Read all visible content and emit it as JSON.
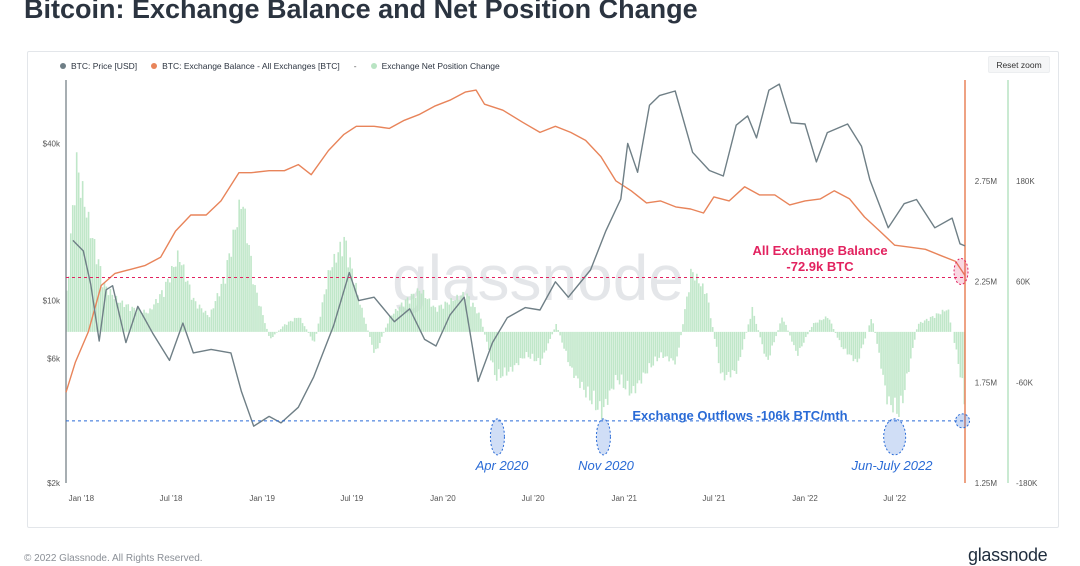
{
  "page": {
    "title": "Bitcoin: Exchange Balance and Net Position Change",
    "copyright": "© 2022 Glassnode. All Rights Reserved.",
    "brand": "glassnode",
    "watermark": "glassnode",
    "reset_zoom_label": "Reset zoom"
  },
  "legend": [
    {
      "label": "BTC: Price [USD]",
      "color": "#6f7f86"
    },
    {
      "label": "BTC: Exchange Balance - All Exchanges [BTC]",
      "color": "#e8845a"
    },
    {
      "label": "Exchange Net Position Change",
      "color": "#b9e4c3"
    }
  ],
  "legend_separator": "-",
  "chart_data": {
    "type": "line",
    "x_axis": {
      "ticks": [
        "Jan '18",
        "Jul '18",
        "Jan '19",
        "Jul '19",
        "Jan '20",
        "Jul '20",
        "Jan '21",
        "Jul '21",
        "Jan '22",
        "Jul '22"
      ],
      "range": [
        "2017-12-01",
        "2022-11-20"
      ]
    },
    "y_axis_price": {
      "scale": "log",
      "ticks": [
        "$2k",
        "$6k",
        "$10k",
        "$40k"
      ],
      "tick_values": [
        2000,
        6000,
        10000,
        40000
      ],
      "range": [
        2000,
        70000
      ]
    },
    "y_axis_balance": {
      "ticks": [
        "1.25M",
        "1.75M",
        "2.25M",
        "2.75M"
      ],
      "tick_values": [
        1250000,
        1750000,
        2250000,
        2750000
      ],
      "range": [
        1250000,
        3250000
      ]
    },
    "y_axis_netflow": {
      "ticks": [
        "-180K",
        "-60K",
        "60K",
        "180K"
      ],
      "tick_values": [
        -180000,
        -60000,
        60000,
        180000
      ],
      "range": [
        -180000,
        300000
      ]
    },
    "series": [
      {
        "name": "BTC: Price [USD]",
        "color": "#6f7f86",
        "points": [
          [
            "2017-12-15",
            17000
          ],
          [
            "2018-01-05",
            15500
          ],
          [
            "2018-01-20",
            11500
          ],
          [
            "2018-02-06",
            7000
          ],
          [
            "2018-02-20",
            11000
          ],
          [
            "2018-03-05",
            11400
          ],
          [
            "2018-04-01",
            6900
          ],
          [
            "2018-04-25",
            9500
          ],
          [
            "2018-05-25",
            7500
          ],
          [
            "2018-06-28",
            5900
          ],
          [
            "2018-07-25",
            8200
          ],
          [
            "2018-08-15",
            6300
          ],
          [
            "2018-09-20",
            6500
          ],
          [
            "2018-10-30",
            6300
          ],
          [
            "2018-11-20",
            4500
          ],
          [
            "2018-12-15",
            3300
          ],
          [
            "2019-01-15",
            3600
          ],
          [
            "2019-02-08",
            3400
          ],
          [
            "2019-03-15",
            3900
          ],
          [
            "2019-04-15",
            5100
          ],
          [
            "2019-05-25",
            8000
          ],
          [
            "2019-06-26",
            12800
          ],
          [
            "2019-07-15",
            10000
          ],
          [
            "2019-08-15",
            10300
          ],
          [
            "2019-09-25",
            8300
          ],
          [
            "2019-10-26",
            9300
          ],
          [
            "2019-11-25",
            7100
          ],
          [
            "2019-12-18",
            6700
          ],
          [
            "2020-01-15",
            8800
          ],
          [
            "2020-02-13",
            10300
          ],
          [
            "2020-03-12",
            4900
          ],
          [
            "2020-04-10",
            6900
          ],
          [
            "2020-05-10",
            8600
          ],
          [
            "2020-06-15",
            9400
          ],
          [
            "2020-07-15",
            9200
          ],
          [
            "2020-08-15",
            11800
          ],
          [
            "2020-09-10",
            10300
          ],
          [
            "2020-10-25",
            13100
          ],
          [
            "2020-11-25",
            18500
          ],
          [
            "2020-12-25",
            24500
          ],
          [
            "2021-01-08",
            40000
          ],
          [
            "2021-01-28",
            31000
          ],
          [
            "2021-02-21",
            56000
          ],
          [
            "2021-03-13",
            61000
          ],
          [
            "2021-04-14",
            63500
          ],
          [
            "2021-05-19",
            37000
          ],
          [
            "2021-06-22",
            31500
          ],
          [
            "2021-07-20",
            30000
          ],
          [
            "2021-08-15",
            47000
          ],
          [
            "2021-09-07",
            51000
          ],
          [
            "2021-09-25",
            42000
          ],
          [
            "2021-10-20",
            64000
          ],
          [
            "2021-11-10",
            67500
          ],
          [
            "2021-12-04",
            48000
          ],
          [
            "2022-01-01",
            47500
          ],
          [
            "2022-01-24",
            34000
          ],
          [
            "2022-02-15",
            44000
          ],
          [
            "2022-03-28",
            47500
          ],
          [
            "2022-04-25",
            39000
          ],
          [
            "2022-05-12",
            29000
          ],
          [
            "2022-06-18",
            19000
          ],
          [
            "2022-07-20",
            23500
          ],
          [
            "2022-08-14",
            24400
          ],
          [
            "2022-09-20",
            19000
          ],
          [
            "2022-10-25",
            20700
          ],
          [
            "2022-11-10",
            16500
          ],
          [
            "2022-11-20",
            16200
          ]
        ]
      },
      {
        "name": "BTC: Exchange Balance - All Exchanges [BTC]",
        "color": "#e8845a",
        "points": [
          [
            "2017-12-01",
            1700000
          ],
          [
            "2017-12-20",
            1850000
          ],
          [
            "2018-01-15",
            2000000
          ],
          [
            "2018-02-10",
            2230000
          ],
          [
            "2018-03-10",
            2290000
          ],
          [
            "2018-04-10",
            2310000
          ],
          [
            "2018-05-10",
            2330000
          ],
          [
            "2018-06-10",
            2370000
          ],
          [
            "2018-07-10",
            2500000
          ],
          [
            "2018-08-10",
            2580000
          ],
          [
            "2018-09-10",
            2580000
          ],
          [
            "2018-10-10",
            2650000
          ],
          [
            "2018-11-15",
            2790000
          ],
          [
            "2018-12-10",
            2790000
          ],
          [
            "2019-01-15",
            2800000
          ],
          [
            "2019-02-15",
            2800000
          ],
          [
            "2019-03-15",
            2830000
          ],
          [
            "2019-04-10",
            2780000
          ],
          [
            "2019-05-15",
            2900000
          ],
          [
            "2019-06-15",
            2980000
          ],
          [
            "2019-07-10",
            3020000
          ],
          [
            "2019-08-15",
            3020000
          ],
          [
            "2019-09-15",
            3010000
          ],
          [
            "2019-10-15",
            3050000
          ],
          [
            "2019-11-15",
            3080000
          ],
          [
            "2019-12-15",
            3120000
          ],
          [
            "2020-01-15",
            3150000
          ],
          [
            "2020-02-15",
            3190000
          ],
          [
            "2020-03-08",
            3200000
          ],
          [
            "2020-03-25",
            3130000
          ],
          [
            "2020-05-01",
            3100000
          ],
          [
            "2020-06-10",
            3040000
          ],
          [
            "2020-07-15",
            2990000
          ],
          [
            "2020-08-15",
            3020000
          ],
          [
            "2020-09-15",
            2990000
          ],
          [
            "2020-10-15",
            2950000
          ],
          [
            "2020-11-15",
            2870000
          ],
          [
            "2020-12-15",
            2750000
          ],
          [
            "2021-01-15",
            2700000
          ],
          [
            "2021-02-15",
            2640000
          ],
          [
            "2021-03-15",
            2650000
          ],
          [
            "2021-04-15",
            2620000
          ],
          [
            "2021-05-15",
            2610000
          ],
          [
            "2021-06-10",
            2590000
          ],
          [
            "2021-07-01",
            2670000
          ],
          [
            "2021-08-01",
            2650000
          ],
          [
            "2021-09-01",
            2720000
          ],
          [
            "2021-10-01",
            2680000
          ],
          [
            "2021-11-01",
            2680000
          ],
          [
            "2021-12-01",
            2630000
          ],
          [
            "2022-01-01",
            2650000
          ],
          [
            "2022-02-01",
            2660000
          ],
          [
            "2022-03-01",
            2700000
          ],
          [
            "2022-04-01",
            2660000
          ],
          [
            "2022-05-01",
            2570000
          ],
          [
            "2022-06-01",
            2500000
          ],
          [
            "2022-07-01",
            2430000
          ],
          [
            "2022-08-01",
            2420000
          ],
          [
            "2022-09-01",
            2410000
          ],
          [
            "2022-10-01",
            2380000
          ],
          [
            "2022-11-01",
            2350000
          ],
          [
            "2022-11-20",
            2280000
          ]
        ]
      },
      {
        "name": "Exchange Net Position Change",
        "color": "#b9e4c3",
        "points": [
          [
            "2017-12-01",
            50000
          ],
          [
            "2017-12-20",
            220000
          ],
          [
            "2018-01-15",
            140000
          ],
          [
            "2018-02-15",
            60000
          ],
          [
            "2018-03-15",
            40000
          ],
          [
            "2018-04-15",
            30000
          ],
          [
            "2018-05-15",
            25000
          ],
          [
            "2018-06-15",
            55000
          ],
          [
            "2018-07-15",
            100000
          ],
          [
            "2018-08-15",
            40000
          ],
          [
            "2018-09-15",
            20000
          ],
          [
            "2018-10-15",
            70000
          ],
          [
            "2018-11-20",
            175000
          ],
          [
            "2018-12-15",
            60000
          ],
          [
            "2019-01-15",
            -10000
          ],
          [
            "2019-02-15",
            10000
          ],
          [
            "2019-03-15",
            20000
          ],
          [
            "2019-04-15",
            -15000
          ],
          [
            "2019-05-15",
            80000
          ],
          [
            "2019-06-15",
            120000
          ],
          [
            "2019-07-15",
            40000
          ],
          [
            "2019-08-15",
            -30000
          ],
          [
            "2019-09-15",
            20000
          ],
          [
            "2019-10-15",
            40000
          ],
          [
            "2019-11-15",
            55000
          ],
          [
            "2019-12-15",
            30000
          ],
          [
            "2020-01-15",
            40000
          ],
          [
            "2020-02-15",
            50000
          ],
          [
            "2020-03-15",
            20000
          ],
          [
            "2020-04-15",
            -60000
          ],
          [
            "2020-05-15",
            -50000
          ],
          [
            "2020-06-15",
            -30000
          ],
          [
            "2020-07-15",
            -40000
          ],
          [
            "2020-08-15",
            10000
          ],
          [
            "2020-09-15",
            -50000
          ],
          [
            "2020-10-15",
            -80000
          ],
          [
            "2020-11-15",
            -105000
          ],
          [
            "2020-12-15",
            -60000
          ],
          [
            "2021-01-15",
            -80000
          ],
          [
            "2021-02-15",
            -50000
          ],
          [
            "2021-03-15",
            -30000
          ],
          [
            "2021-04-15",
            -40000
          ],
          [
            "2021-05-15",
            80000
          ],
          [
            "2021-06-15",
            50000
          ],
          [
            "2021-07-15",
            -60000
          ],
          [
            "2021-08-15",
            -50000
          ],
          [
            "2021-09-15",
            30000
          ],
          [
            "2021-10-15",
            -40000
          ],
          [
            "2021-11-15",
            20000
          ],
          [
            "2021-12-15",
            -30000
          ],
          [
            "2022-01-15",
            10000
          ],
          [
            "2022-02-15",
            20000
          ],
          [
            "2022-03-15",
            -20000
          ],
          [
            "2022-04-15",
            -40000
          ],
          [
            "2022-05-15",
            20000
          ],
          [
            "2022-06-15",
            -90000
          ],
          [
            "2022-07-10",
            -106000
          ],
          [
            "2022-08-15",
            10000
          ],
          [
            "2022-09-15",
            20000
          ],
          [
            "2022-10-15",
            30000
          ],
          [
            "2022-11-05",
            -40000
          ],
          [
            "2022-11-20",
            -100000
          ]
        ]
      }
    ],
    "reference_lines": [
      {
        "axis": "balance",
        "value": 2270000,
        "color": "#e2225f",
        "style": "dashed"
      },
      {
        "axis": "netflow",
        "value": -106000,
        "color": "#2a6bd6",
        "style": "dashed"
      }
    ],
    "annotations": [
      {
        "text": "All Exchange Balance",
        "color": "#e2225f",
        "bold": true
      },
      {
        "text": "-72.9k BTC",
        "color": "#e2225f",
        "bold": true
      },
      {
        "text": "Exchange Outflows -106k BTC/mth",
        "color": "#2a6bd6",
        "bold": true
      },
      {
        "text": "Apr 2020",
        "color": "#2a6bd6",
        "italic": true,
        "date": "2020-04-20"
      },
      {
        "text": "Nov 2020",
        "color": "#2a6bd6",
        "italic": true,
        "date": "2020-11-20"
      },
      {
        "text": "Jun-July 2022",
        "color": "#2a6bd6",
        "italic": true,
        "date": "2022-07-01"
      }
    ]
  }
}
